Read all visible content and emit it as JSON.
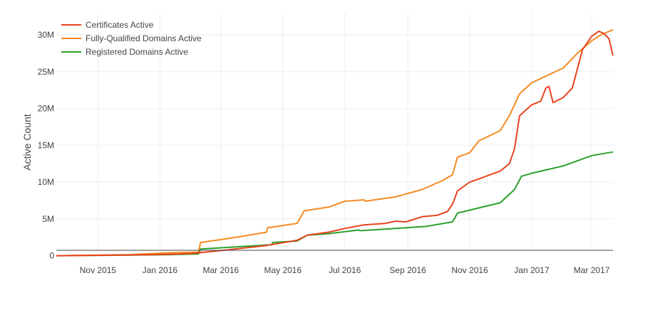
{
  "chart_data": {
    "type": "line",
    "title": "",
    "xlabel": "",
    "ylabel": "Active Count",
    "x_ticks": [
      "Nov 2015",
      "Jan 2016",
      "Mar 2016",
      "May 2016",
      "Jul 2016",
      "Sep 2016",
      "Nov 2016",
      "Jan 2017",
      "Mar 2017"
    ],
    "y_ticks": [
      "0",
      "5M",
      "10M",
      "15M",
      "20M",
      "25M",
      "30M"
    ],
    "xlim": [
      "2015-09-21",
      "2017-03-22"
    ],
    "ylim": [
      -1000000,
      33000000
    ],
    "grid": true,
    "legend_position": "top-left",
    "series": [
      {
        "name": "Certificates Active",
        "color": "#e8431e",
        "points": [
          [
            "2015-09-21",
            0
          ],
          [
            "2015-10-15",
            30000
          ],
          [
            "2015-12-01",
            100000
          ],
          [
            "2016-01-10",
            200000
          ],
          [
            "2016-02-01",
            300000
          ],
          [
            "2016-03-01",
            700000
          ],
          [
            "2016-04-15",
            1400000
          ],
          [
            "2016-05-15",
            2100000
          ],
          [
            "2016-05-25",
            2800000
          ],
          [
            "2016-06-15",
            3200000
          ],
          [
            "2016-07-01",
            3700000
          ],
          [
            "2016-07-20",
            4200000
          ],
          [
            "2016-08-10",
            4400000
          ],
          [
            "2016-08-20",
            4700000
          ],
          [
            "2016-08-30",
            4600000
          ],
          [
            "2016-09-15",
            5300000
          ],
          [
            "2016-09-30",
            5500000
          ],
          [
            "2016-10-10",
            6000000
          ],
          [
            "2016-10-15",
            7000000
          ],
          [
            "2016-10-20",
            8800000
          ],
          [
            "2016-11-01",
            10000000
          ],
          [
            "2016-11-15",
            10700000
          ],
          [
            "2016-12-01",
            11500000
          ],
          [
            "2016-12-10",
            12500000
          ],
          [
            "2016-12-15",
            14500000
          ],
          [
            "2016-12-20",
            19000000
          ],
          [
            "2017-01-01",
            20500000
          ],
          [
            "2017-01-10",
            21000000
          ],
          [
            "2017-01-15",
            22800000
          ],
          [
            "2017-01-18",
            23000000
          ],
          [
            "2017-01-22",
            20800000
          ],
          [
            "2017-02-01",
            21500000
          ],
          [
            "2017-02-10",
            22800000
          ],
          [
            "2017-02-20",
            28000000
          ],
          [
            "2017-03-01",
            29800000
          ],
          [
            "2017-03-08",
            30500000
          ],
          [
            "2017-03-13",
            30200000
          ],
          [
            "2017-03-18",
            29500000
          ],
          [
            "2017-03-22",
            27200000
          ]
        ]
      },
      {
        "name": "Fully-Qualified Domains Active",
        "color": "#f58a22",
        "points": [
          [
            "2015-09-21",
            0
          ],
          [
            "2015-10-15",
            50000
          ],
          [
            "2015-12-01",
            150000
          ],
          [
            "2016-01-10",
            400000
          ],
          [
            "2016-02-08",
            500000
          ],
          [
            "2016-02-10",
            1800000
          ],
          [
            "2016-03-01",
            2200000
          ],
          [
            "2016-03-20",
            2600000
          ],
          [
            "2016-04-15",
            3200000
          ],
          [
            "2016-04-16",
            3800000
          ],
          [
            "2016-05-15",
            4400000
          ],
          [
            "2016-05-22",
            6100000
          ],
          [
            "2016-06-15",
            6600000
          ],
          [
            "2016-07-01",
            7400000
          ],
          [
            "2016-07-20",
            7600000
          ],
          [
            "2016-07-21",
            7400000
          ],
          [
            "2016-08-20",
            8000000
          ],
          [
            "2016-09-15",
            9000000
          ],
          [
            "2016-10-05",
            10200000
          ],
          [
            "2016-10-15",
            11000000
          ],
          [
            "2016-10-20",
            13400000
          ],
          [
            "2016-11-01",
            14000000
          ],
          [
            "2016-11-10",
            15600000
          ],
          [
            "2016-12-01",
            17000000
          ],
          [
            "2016-12-10",
            19000000
          ],
          [
            "2016-12-20",
            22000000
          ],
          [
            "2017-01-01",
            23500000
          ],
          [
            "2017-02-01",
            25500000
          ],
          [
            "2017-02-15",
            27500000
          ],
          [
            "2017-03-01",
            29200000
          ],
          [
            "2017-03-10",
            30000000
          ],
          [
            "2017-03-22",
            30700000
          ]
        ]
      },
      {
        "name": "Registered Domains Active",
        "color": "#2ca02c",
        "points": [
          [
            "2015-09-21",
            0
          ],
          [
            "2015-10-15",
            30000
          ],
          [
            "2015-12-01",
            80000
          ],
          [
            "2016-01-10",
            150000
          ],
          [
            "2016-02-08",
            250000
          ],
          [
            "2016-02-10",
            900000
          ],
          [
            "2016-03-15",
            1200000
          ],
          [
            "2016-04-20",
            1500000
          ],
          [
            "2016-04-21",
            1800000
          ],
          [
            "2016-05-15",
            2000000
          ],
          [
            "2016-05-25",
            2800000
          ],
          [
            "2016-06-15",
            3000000
          ],
          [
            "2016-07-15",
            3500000
          ],
          [
            "2016-07-16",
            3400000
          ],
          [
            "2016-08-20",
            3700000
          ],
          [
            "2016-09-20",
            4000000
          ],
          [
            "2016-10-15",
            4600000
          ],
          [
            "2016-10-20",
            5800000
          ],
          [
            "2016-11-01",
            6200000
          ],
          [
            "2016-12-01",
            7200000
          ],
          [
            "2016-12-15",
            9000000
          ],
          [
            "2016-12-22",
            10800000
          ],
          [
            "2017-01-01",
            11200000
          ],
          [
            "2017-02-01",
            12200000
          ],
          [
            "2017-03-01",
            13600000
          ],
          [
            "2017-03-22",
            14100000
          ]
        ]
      }
    ]
  }
}
